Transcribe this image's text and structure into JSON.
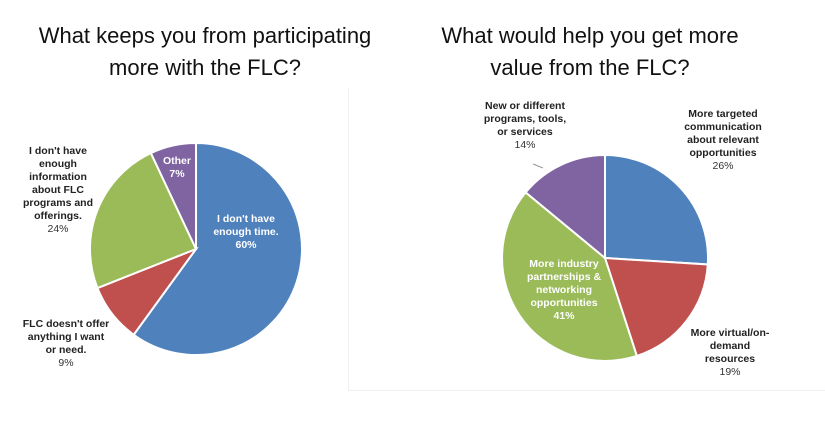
{
  "chart_data": [
    {
      "type": "pie",
      "title": "What keeps you from participating\nmore with the FLC?",
      "slices": [
        {
          "label": "I don't have\nenough time.",
          "value": 60,
          "pct_text": "60%",
          "color": "#4f81bd"
        },
        {
          "label": "FLC doesn't offer\nanything I want\nor need.",
          "value": 9,
          "pct_text": "9%",
          "color": "#c0504d"
        },
        {
          "label": "I don't have\nenough\ninformation\nabout FLC\nprograms and\nofferings.",
          "value": 24,
          "pct_text": "24%",
          "color": "#9bbb59"
        },
        {
          "label": "Other",
          "value": 7,
          "pct_text": "7%",
          "color": "#8064a2"
        }
      ]
    },
    {
      "type": "pie",
      "title": "What would help you get more\nvalue from the FLC?",
      "slices": [
        {
          "label": "More targeted\ncommunication\nabout relevant\nopportunities",
          "value": 26,
          "pct_text": "26%",
          "color": "#4f81bd"
        },
        {
          "label": "More virtual/on-\ndemand\nresources",
          "value": 19,
          "pct_text": "19%",
          "color": "#c0504d"
        },
        {
          "label": "More industry\npartnerships &\nnetworking\nopportunities",
          "value": 41,
          "pct_text": "41%",
          "color": "#9bbb59"
        },
        {
          "label": "New or different\nprograms, tools,\nor services",
          "value": 14,
          "pct_text": "14%",
          "color": "#8064a2"
        }
      ]
    }
  ]
}
